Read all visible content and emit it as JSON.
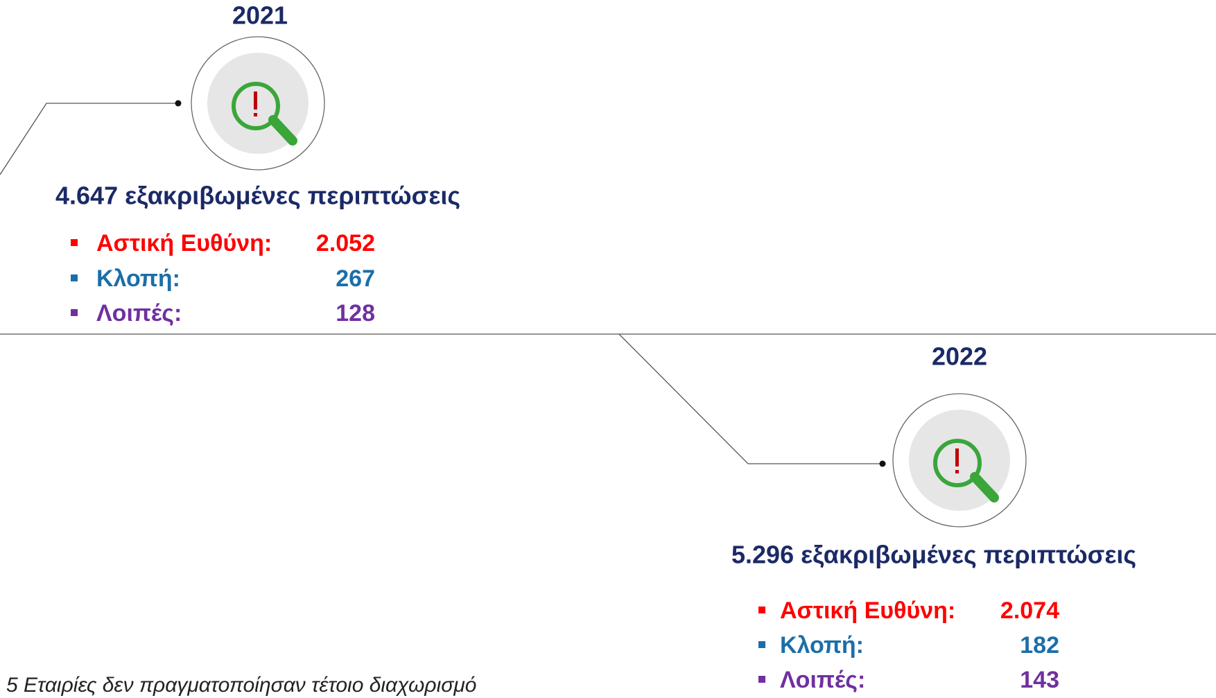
{
  "panels": [
    {
      "year": "2021",
      "headline": "4.647 εξακριβωμένες περιπτώσεις",
      "items": [
        {
          "label": "Αστική Ευθύνη:",
          "value": "2.052"
        },
        {
          "label": "Κλοπή:",
          "value": "267"
        },
        {
          "label": "Λοιπές:",
          "value": "128"
        }
      ]
    },
    {
      "year": "2022",
      "headline": "5.296 εξακριβωμένες περιπτώσεις",
      "items": [
        {
          "label": "Αστική Ευθύνη:",
          "value": "2.074"
        },
        {
          "label": "Κλοπή:",
          "value": "182"
        },
        {
          "label": "Λοιπές:",
          "value": "143"
        }
      ]
    }
  ],
  "footnote": "5 Εταιρίες δεν πραγματοποίησαν τέτοιο διαχωρισμό"
}
